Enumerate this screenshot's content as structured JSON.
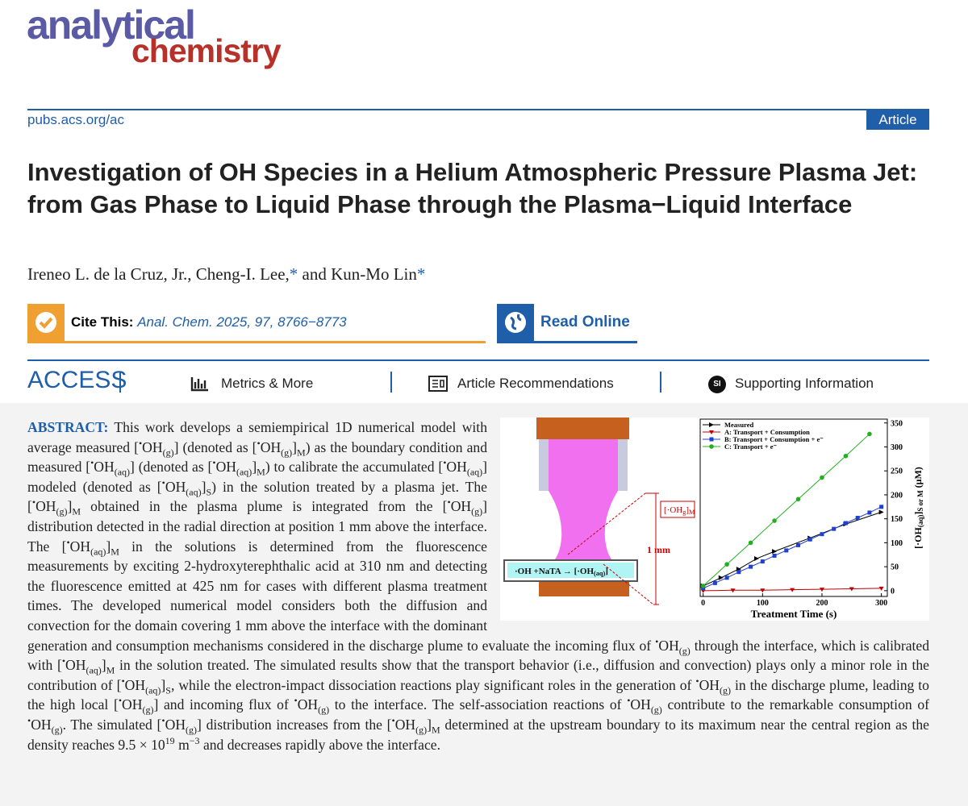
{
  "header": {
    "logo_top": "analytical",
    "logo_bottom": "chemistry",
    "url": "pubs.acs.org/ac",
    "article_type": "Article"
  },
  "title": "Investigation of OH Species in a Helium Atmospheric Pressure Plasma Jet: from Gas Phase to Liquid Phase through the Plasma−Liquid Interface",
  "authors": [
    "Ireneo L. de la Cruz, Jr., Cheng-I. Lee,",
    {
      "mark": "*"
    },
    " and Kun-Mo Lin",
    {
      "mark": "*"
    }
  ],
  "cite": {
    "label": "Cite This:",
    "citation": "Anal. Chem. 2025, 97, 8766−8773"
  },
  "read_online": "Read Online",
  "access": {
    "label": "ACCESS",
    "metrics": "Metrics & More",
    "recommendations": "Article Recommendations",
    "si_icon": "SI",
    "supporting": "Supporting Information"
  },
  "abstract": {
    "label": "ABSTRACT:",
    "runs": [
      "This work develops a semiempirical 1D numerical model with average measured [",
      {
        "sup": "•"
      },
      "OH",
      {
        "sub": "(g)"
      },
      "] (denoted as [",
      {
        "sup": "•"
      },
      "OH",
      {
        "sub": "(g)"
      },
      "]",
      {
        "sub": "M"
      },
      ") as the boundary condition and measured [",
      {
        "sup": "•"
      },
      "OH",
      {
        "sub": "(aq)"
      },
      "] (denoted as [",
      {
        "sup": "•"
      },
      "OH",
      {
        "sub": "(aq)"
      },
      "]",
      {
        "sub": "M"
      },
      ") to calibrate the accumulated [",
      {
        "sup": "•"
      },
      "OH",
      {
        "sub": "(aq)"
      },
      "] modeled (denoted as [",
      {
        "sup": "•"
      },
      "OH",
      {
        "sub": "(aq)"
      },
      "]",
      {
        "sub": "S"
      },
      ") in the solution treated by a plasma jet. The [",
      {
        "sup": "•"
      },
      "OH",
      {
        "sub": "(g)"
      },
      "]",
      {
        "sub": "M"
      },
      " obtained in the plasma plume is integrated from the [",
      {
        "sup": "•"
      },
      "OH",
      {
        "sub": "(g)"
      },
      "] distribution detected in the radial direction at position 1 mm above the interface. The [",
      {
        "sup": "•"
      },
      "OH",
      {
        "sub": "(aq)"
      },
      "]",
      {
        "sub": "M"
      },
      " in the solutions is determined from the fluorescence measurements by exciting 2-hydroxyterephthalic acid at 310 nm and detecting the fluorescence emitted at 425 nm for cases with different plasma treatment times. The developed numerical model considers both the diffusion and convection for the domain covering 1 mm above the interface with the dominant generation and consumption mechanisms considered in the discharge plume to evaluate the incoming flux of ",
      {
        "sup": "•"
      },
      "OH",
      {
        "sub": "(g)"
      },
      " through the interface, which is calibrated with [",
      {
        "sup": "•"
      },
      "OH",
      {
        "sub": "(aq)"
      },
      "]",
      {
        "sub": "M"
      },
      " in the solution treated. The simulated results show that the transport behavior (i.e., diffusion and convection) plays only a minor role in the contribution of [",
      {
        "sup": "•"
      },
      "OH",
      {
        "sub": "(aq)"
      },
      "]",
      {
        "sub": "S"
      },
      ", while the electron-impact dissociation reactions play significant roles in the generation of ",
      {
        "sup": "•"
      },
      "OH",
      {
        "sub": "(g)"
      },
      " in the discharge plume, leading to the high local [",
      {
        "sup": "•"
      },
      "OH",
      {
        "sub": "(g)"
      },
      "] and incoming flux of ",
      {
        "sup": "•"
      },
      "OH",
      {
        "sub": "(g)"
      },
      " to the interface. The self-association reactions of ",
      {
        "sup": "•"
      },
      "OH",
      {
        "sub": "(g)"
      },
      " contribute to the remarkable consumption of ",
      {
        "sup": "•"
      },
      "OH",
      {
        "sub": "(g)"
      },
      ". The simulated [",
      {
        "sup": "•"
      },
      "OH",
      {
        "sub": "(g)"
      },
      "] distribution increases from the [",
      {
        "sup": "•"
      },
      "OH",
      {
        "sub": "(g)"
      },
      "]",
      {
        "sub": "M"
      },
      " determined at the upstream boundary to its maximum near the central region as the density reaches 9.5 × 10",
      {
        "sup": "19"
      },
      " m",
      {
        "sup": "−3"
      },
      " and decreases rapidly above the interface."
    ]
  },
  "diagram": {
    "plume_label": [
      "[·OH",
      {
        "sub": "g"
      },
      "]",
      {
        "sub": "M"
      }
    ],
    "gap_label": "1 mm",
    "liquid_label": [
      "·OH +NaTA → [·OH",
      {
        "sub": "(aq)"
      },
      "]"
    ]
  },
  "chart_data": {
    "type": "line",
    "xlabel": "Treatment Time (s)",
    "ylabel": [
      "[·OH",
      {
        "sub": "(aq)"
      },
      "]",
      {
        "sub": "S or M"
      },
      " (μM)"
    ],
    "xlim": [
      -5,
      310
    ],
    "xticks": [
      0,
      100,
      200,
      300
    ],
    "y2lim": [
      -12,
      358
    ],
    "y2ticks": [
      0,
      50,
      100,
      150,
      200,
      250,
      300,
      350
    ],
    "series": [
      {
        "name": "Measured",
        "color": "#000000",
        "axis": "y2",
        "x": [
          0,
          30,
          60,
          90,
          120,
          180,
          240,
          300
        ],
        "values": [
          10,
          27,
          45,
          67,
          82,
          110,
          139,
          164
        ]
      },
      {
        "name": "A: Transport + Consumption",
        "color": "#c00000",
        "axis": "y2",
        "x": [
          0,
          50,
          100,
          150,
          200,
          250,
          300
        ],
        "values": [
          0,
          1,
          1,
          2,
          3,
          4,
          5
        ]
      },
      {
        "name": "B: Transport + Consumption + e⁻",
        "color": "#2040d0",
        "axis": "y2",
        "x": [
          0,
          20,
          40,
          60,
          80,
          100,
          120,
          140,
          160,
          180,
          200,
          220,
          240,
          260,
          280,
          300
        ],
        "values": [
          5,
          16,
          27,
          39,
          50,
          61,
          73,
          84,
          95,
          107,
          118,
          129,
          141,
          152,
          163,
          175
        ]
      },
      {
        "name": "C: Transport + e⁻",
        "color": "#20b020",
        "axis": "y2",
        "x": [
          0,
          40,
          80,
          120,
          160,
          200,
          240,
          280
        ],
        "values": [
          10,
          55,
          100,
          146,
          191,
          236,
          281,
          327
        ]
      }
    ]
  }
}
